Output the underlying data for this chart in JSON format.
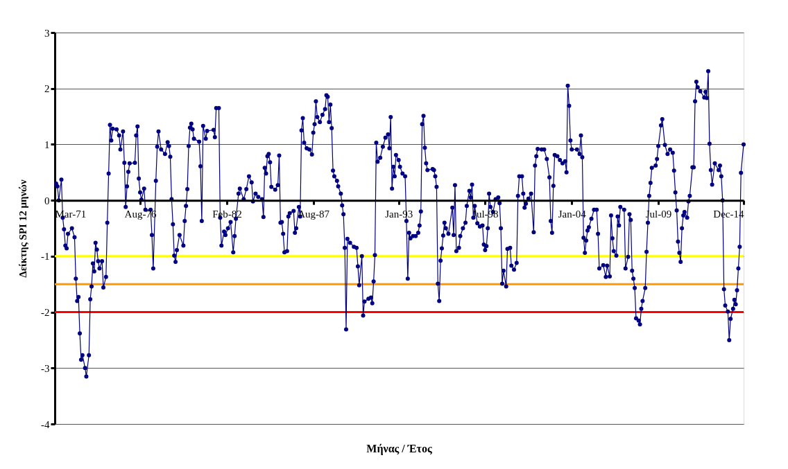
{
  "chart_data": {
    "type": "line",
    "xlabel": "Μήνας / Έτος",
    "ylabel": "Δείκτης SPI 12 μηνών",
    "xlim": [
      "1971-03",
      "2014-12"
    ],
    "xticks": [
      {
        "value": "1971-03",
        "label": "Mar-71"
      },
      {
        "value": "1976-08",
        "label": "Aug-76"
      },
      {
        "value": "1982-02",
        "label": "Feb-82"
      },
      {
        "value": "1987-08",
        "label": "Aug-87"
      },
      {
        "value": "1993-01",
        "label": "Jan-93"
      },
      {
        "value": "1998-07",
        "label": "Jul-98"
      },
      {
        "value": "2004-01",
        "label": "Jan-04"
      },
      {
        "value": "2009-07",
        "label": "Jul-09"
      },
      {
        "value": "2014-12",
        "label": "Dec-14"
      }
    ],
    "ylim": [
      -4,
      3
    ],
    "yticks": [
      -4,
      -3,
      -2,
      -1,
      0,
      1,
      2,
      3
    ],
    "grid": "y",
    "marker": "circle",
    "line_style": "solid",
    "ref_lines": [
      {
        "axis": "y",
        "value": -1,
        "color": "#ffff00"
      },
      {
        "axis": "y",
        "value": -1.5,
        "color": "#ff9900"
      },
      {
        "axis": "y",
        "value": -2,
        "color": "#ff0000"
      }
    ],
    "series": [
      {
        "color": "#000080",
        "x": [
          "1971-04",
          "1971-05",
          "1971-06",
          "1971-08",
          "1971-09",
          "1971-10",
          "1971-11",
          "1971-12",
          "1972-01",
          "1972-04",
          "1972-06",
          "1972-07",
          "1972-08",
          "1972-09",
          "1972-10",
          "1972-11",
          "1972-12",
          "1973-02",
          "1973-03",
          "1973-05",
          "1973-06",
          "1973-07",
          "1973-08",
          "1973-09",
          "1973-10",
          "1973-11",
          "1973-12",
          "1974-01",
          "1974-03",
          "1974-04",
          "1974-06",
          "1974-07",
          "1974-08",
          "1974-09",
          "1974-10",
          "1974-11",
          "1975-02",
          "1975-04",
          "1975-05",
          "1975-07",
          "1975-08",
          "1975-09",
          "1975-10",
          "1975-11",
          "1975-12",
          "1976-04",
          "1976-05",
          "1976-06",
          "1976-07",
          "1976-08",
          "1976-09",
          "1976-11",
          "1976-12",
          "1977-04",
          "1977-05",
          "1977-06",
          "1977-08",
          "1977-09",
          "1977-10",
          "1977-12",
          "1978-03",
          "1978-05",
          "1978-06",
          "1978-07",
          "1978-08",
          "1978-09",
          "1978-10",
          "1978-11",
          "1978-12",
          "1979-02",
          "1979-05",
          "1979-06",
          "1979-07",
          "1979-08",
          "1979-09",
          "1979-10",
          "1979-11",
          "1979-12",
          "1980-01",
          "1980-05",
          "1980-06",
          "1980-07",
          "1980-08",
          "1980-10",
          "1980-11",
          "1981-04",
          "1981-05",
          "1981-06",
          "1981-08",
          "1981-09",
          "1981-10",
          "1981-12",
          "1982-01",
          "1982-03",
          "1982-05",
          "1982-07",
          "1982-08",
          "1982-09",
          "1982-11",
          "1982-12",
          "1983-03",
          "1983-05",
          "1983-07",
          "1983-09",
          "1983-10",
          "1983-12",
          "1984-02",
          "1984-05",
          "1984-06",
          "1984-07",
          "1984-08",
          "1984-09",
          "1984-10",
          "1984-11",
          "1984-12",
          "1985-03",
          "1985-05",
          "1985-06",
          "1985-07",
          "1985-08",
          "1985-09",
          "1985-10",
          "1985-12",
          "1986-01",
          "1986-02",
          "1986-05",
          "1986-06",
          "1986-07",
          "1986-09",
          "1986-10",
          "1986-11",
          "1986-12",
          "1987-01",
          "1987-03",
          "1987-05",
          "1987-07",
          "1987-08",
          "1987-09",
          "1987-10",
          "1987-11",
          "1988-01",
          "1988-03",
          "1988-05",
          "1988-06",
          "1988-07",
          "1988-08",
          "1988-09",
          "1988-10",
          "1988-11",
          "1988-12",
          "1989-02",
          "1989-03",
          "1989-05",
          "1989-06",
          "1989-07",
          "1989-08",
          "1989-09",
          "1989-10",
          "1989-12",
          "1990-03",
          "1990-05",
          "1990-06",
          "1990-07",
          "1990-09",
          "1990-10",
          "1990-11",
          "1991-02",
          "1991-04",
          "1991-05",
          "1991-06",
          "1991-07",
          "1991-08",
          "1991-09",
          "1991-11",
          "1992-01",
          "1992-03",
          "1992-05",
          "1992-06",
          "1992-07",
          "1992-08",
          "1992-09",
          "1992-10",
          "1992-11",
          "1993-01",
          "1993-02",
          "1993-04",
          "1993-06",
          "1993-07",
          "1993-08",
          "1993-09",
          "1993-10",
          "1993-12",
          "1994-02",
          "1994-04",
          "1994-05",
          "1994-06",
          "1994-07",
          "1994-08",
          "1994-09",
          "1994-10",
          "1994-11",
          "1995-03",
          "1995-04",
          "1995-05",
          "1995-06",
          "1995-07",
          "1995-08",
          "1995-09",
          "1995-10",
          "1995-11",
          "1995-12",
          "1996-01",
          "1996-03",
          "1996-06",
          "1996-07",
          "1996-08",
          "1996-09",
          "1996-11",
          "1996-12",
          "1997-02",
          "1997-04",
          "1997-05",
          "1997-07",
          "1997-08",
          "1997-09",
          "1997-10",
          "1997-11",
          "1998-01",
          "1998-03",
          "1998-05",
          "1998-06",
          "1998-07",
          "1998-08",
          "1998-09",
          "1998-10",
          "1998-11",
          "1999-01",
          "1999-03",
          "1999-05",
          "1999-06",
          "1999-07",
          "1999-08",
          "1999-09",
          "1999-11",
          "1999-12",
          "2000-02",
          "2000-03",
          "2000-05",
          "2000-07",
          "2000-08",
          "2000-09",
          "2000-11",
          "2000-12",
          "2001-01",
          "2001-02",
          "2001-04",
          "2001-06",
          "2001-08",
          "2001-09",
          "2001-10",
          "2001-11",
          "2002-02",
          "2002-04",
          "2002-06",
          "2002-08",
          "2002-09",
          "2002-10",
          "2002-11",
          "2002-12",
          "2003-02",
          "2003-04",
          "2003-06",
          "2003-08",
          "2003-09",
          "2003-10",
          "2003-11",
          "2003-12",
          "2004-01",
          "2004-05",
          "2004-07",
          "2004-08",
          "2004-09",
          "2004-10",
          "2004-11",
          "2004-12",
          "2005-01",
          "2005-02",
          "2005-04",
          "2005-06",
          "2005-08",
          "2005-09",
          "2005-10",
          "2006-01",
          "2006-03",
          "2006-04",
          "2006-06",
          "2006-07",
          "2006-08",
          "2006-09",
          "2006-11",
          "2006-12",
          "2007-01",
          "2007-02",
          "2007-05",
          "2007-06",
          "2007-08",
          "2007-09",
          "2007-10",
          "2007-11",
          "2007-12",
          "2008-01",
          "2008-02",
          "2008-04",
          "2008-05",
          "2008-06",
          "2008-07",
          "2008-09",
          "2008-10",
          "2008-11",
          "2008-12",
          "2009-01",
          "2009-02",
          "2009-05",
          "2009-06",
          "2009-07",
          "2009-09",
          "2009-10",
          "2009-12",
          "2010-02",
          "2010-04",
          "2010-06",
          "2010-07",
          "2010-08",
          "2010-09",
          "2010-10",
          "2010-11",
          "2010-12",
          "2011-01",
          "2011-02",
          "2011-03",
          "2011-05",
          "2011-06",
          "2011-07",
          "2011-09",
          "2011-10",
          "2011-11",
          "2011-12",
          "2012-01",
          "2012-03",
          "2012-06",
          "2012-07",
          "2012-08",
          "2012-09",
          "2012-10",
          "2012-11",
          "2012-12",
          "2013-02",
          "2013-05",
          "2013-06",
          "2013-07",
          "2013-08",
          "2013-09",
          "2013-10",
          "2013-12",
          "2014-01",
          "2014-02",
          "2014-04",
          "2014-05",
          "2014-06",
          "2014-07",
          "2014-08",
          "2014-09",
          "2014-10",
          "2014-12"
        ],
        "values": [
          0.3,
          0.25,
          0.0,
          0.37,
          -0.31,
          -0.52,
          -0.81,
          -0.86,
          -0.6,
          -0.5,
          -0.66,
          -1.4,
          -1.8,
          -1.73,
          -2.38,
          -2.85,
          -2.77,
          -3.0,
          -3.15,
          -2.77,
          -1.77,
          -1.54,
          -1.13,
          -1.27,
          -0.76,
          -0.88,
          -1.09,
          -1.22,
          -1.09,
          -1.56,
          -1.37,
          -0.4,
          0.48,
          1.35,
          1.07,
          1.28,
          1.27,
          1.16,
          0.91,
          1.23,
          0.67,
          -0.12,
          0.25,
          0.51,
          0.66,
          0.67,
          1.16,
          1.32,
          0.39,
          0.14,
          0.01,
          0.21,
          -0.17,
          -0.17,
          -0.62,
          -1.22,
          0.35,
          0.96,
          1.23,
          0.91,
          0.83,
          1.04,
          0.97,
          0.78,
          0.02,
          -0.43,
          -0.99,
          -1.1,
          -0.89,
          -0.62,
          -0.81,
          -0.37,
          -0.1,
          0.2,
          0.97,
          1.3,
          1.37,
          1.27,
          1.1,
          1.05,
          0.61,
          -0.37,
          1.33,
          1.1,
          1.24,
          1.26,
          1.13,
          1.65,
          1.65,
          -0.31,
          -0.81,
          -0.56,
          -0.62,
          -0.5,
          -0.39,
          -0.93,
          -0.64,
          -0.33,
          0.12,
          0.21,
          0.02,
          0.2,
          0.43,
          0.32,
          -0.02,
          0.12,
          0.06,
          0.02,
          -0.3,
          0.58,
          0.48,
          0.79,
          0.83,
          0.68,
          0.24,
          0.19,
          0.27,
          0.8,
          -0.4,
          -0.39,
          -0.6,
          -0.93,
          -0.91,
          -0.29,
          -0.23,
          -0.19,
          -0.58,
          -0.5,
          -0.12,
          -0.29,
          1.25,
          1.47,
          1.03,
          0.93,
          0.91,
          0.82,
          1.21,
          1.36,
          1.77,
          1.49,
          1.4,
          1.53,
          1.63,
          1.88,
          1.85,
          1.4,
          1.71,
          1.29,
          0.53,
          0.43,
          0.35,
          0.25,
          0.12,
          -0.09,
          -0.25,
          -0.85,
          -2.31,
          -0.69,
          -0.76,
          -0.83,
          -0.85,
          -1.18,
          -1.52,
          -1.0,
          -2.06,
          -1.81,
          -1.76,
          -1.74,
          -1.84,
          -1.45,
          -0.98,
          1.03,
          0.69,
          0.76,
          0.96,
          1.12,
          1.18,
          0.93,
          1.49,
          0.21,
          0.6,
          0.43,
          0.81,
          0.72,
          0.6,
          0.48,
          0.43,
          -0.37,
          -1.4,
          -0.58,
          -0.68,
          -0.64,
          -0.64,
          -0.58,
          -0.45,
          -0.2,
          1.36,
          1.51,
          0.94,
          0.66,
          0.54,
          0.56,
          0.54,
          0.43,
          0.24,
          -1.49,
          -1.8,
          -1.08,
          -0.86,
          -0.63,
          -0.4,
          -0.5,
          -0.6,
          -0.13,
          -0.62,
          0.27,
          -0.91,
          -0.85,
          -0.64,
          -0.5,
          -0.4,
          -0.1,
          0.17,
          0.05,
          0.28,
          -0.31,
          -0.1,
          -0.41,
          -0.47,
          -0.45,
          -0.79,
          -0.89,
          -0.82,
          -0.5,
          0.12,
          -0.12,
          -0.21,
          0.02,
          0.05,
          -0.05,
          -0.5,
          -1.49,
          -1.26,
          -1.54,
          -0.87,
          -0.85,
          -1.17,
          -1.24,
          -1.12,
          0.08,
          0.43,
          0.43,
          0.12,
          -0.13,
          -0.06,
          0.03,
          0.12,
          -0.57,
          0.62,
          0.79,
          0.92,
          0.91,
          0.91,
          0.74,
          0.41,
          -0.37,
          -0.58,
          0.26,
          0.81,
          0.79,
          0.72,
          0.66,
          0.7,
          0.5,
          2.05,
          1.69,
          1.07,
          0.91,
          0.91,
          0.83,
          1.16,
          0.77,
          -0.67,
          -0.94,
          -0.72,
          -0.54,
          -0.48,
          -0.33,
          -0.17,
          -0.17,
          -0.6,
          -1.22,
          -1.16,
          -1.37,
          -1.17,
          -1.36,
          -0.27,
          -0.68,
          -0.91,
          -0.99,
          -0.29,
          -0.45,
          -0.12,
          -0.17,
          -1.22,
          -1.01,
          -0.25,
          -0.35,
          -1.26,
          -1.4,
          -1.57,
          -2.11,
          -2.15,
          -2.22,
          -1.94,
          -1.8,
          -1.57,
          -0.92,
          -0.4,
          0.08,
          0.31,
          0.58,
          0.62,
          0.74,
          0.97,
          1.34,
          1.45,
          0.99,
          0.83,
          0.91,
          0.85,
          0.53,
          0.14,
          -0.18,
          -0.74,
          -0.94,
          -1.1,
          -0.5,
          -0.27,
          -0.21,
          -0.31,
          -0.02,
          0.08,
          0.59,
          0.59,
          1.77,
          2.12,
          2.02,
          1.95,
          1.84,
          1.94,
          1.83,
          2.31,
          1.01,
          0.54,
          0.28,
          0.66,
          0.54,
          0.62,
          0.43,
          0.0,
          -1.59,
          -1.88,
          -1.99,
          -2.5,
          -2.12,
          -1.94,
          -1.78,
          -1.86,
          -1.61,
          -1.22,
          -0.83,
          0.49,
          1.0
        ]
      }
    ]
  }
}
